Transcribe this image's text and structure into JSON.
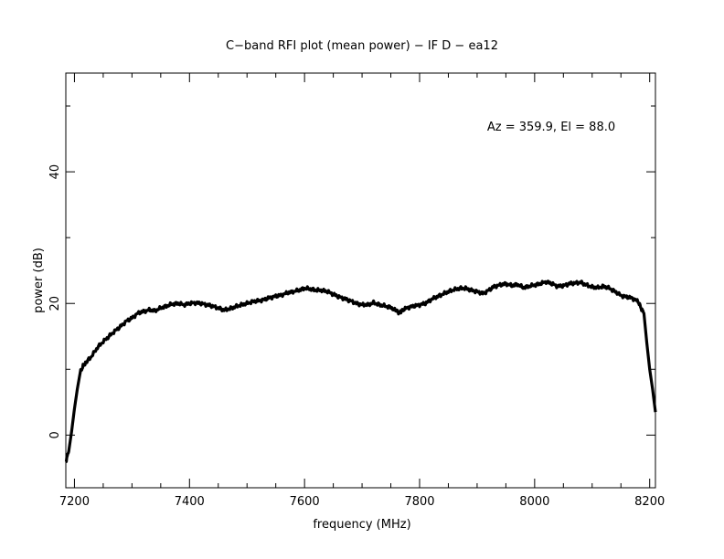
{
  "chart_data": {
    "type": "line",
    "title": "C−band RFI plot (mean power) − IF D − ea12",
    "xlabel": "frequency (MHz)",
    "ylabel": "power (dB)",
    "xlim": [
      7185,
      8210
    ],
    "ylim": [
      -8,
      55
    ],
    "x_ticks": [
      7200,
      7400,
      7600,
      7800,
      8000,
      8200
    ],
    "x_tick_labels": [
      "7200",
      "7400",
      "7600",
      "7800",
      "8000",
      "8200"
    ],
    "x_minor_step": 50,
    "y_ticks": [
      0,
      20,
      40
    ],
    "y_tick_labels": [
      "0",
      "20",
      "40"
    ],
    "y_minor_step": 10,
    "grid": false,
    "annotation": "Az = 359.9, El = 88.0",
    "series": [
      {
        "color": "#000000",
        "x": [
          7185,
          7190,
          7195,
          7200,
          7205,
          7210,
          7215,
          7220,
          7230,
          7240,
          7250,
          7260,
          7270,
          7280,
          7290,
          7300,
          7310,
          7320,
          7330,
          7340,
          7350,
          7360,
          7370,
          7380,
          7390,
          7400,
          7410,
          7420,
          7430,
          7440,
          7450,
          7460,
          7470,
          7480,
          7490,
          7500,
          7510,
          7520,
          7530,
          7540,
          7550,
          7560,
          7570,
          7580,
          7590,
          7600,
          7610,
          7620,
          7630,
          7640,
          7650,
          7660,
          7670,
          7680,
          7690,
          7700,
          7710,
          7720,
          7730,
          7740,
          7750,
          7760,
          7765,
          7770,
          7780,
          7790,
          7800,
          7810,
          7820,
          7830,
          7840,
          7850,
          7860,
          7870,
          7880,
          7890,
          7900,
          7910,
          7920,
          7930,
          7940,
          7950,
          7960,
          7970,
          7980,
          7990,
          8000,
          8010,
          8020,
          8030,
          8040,
          8050,
          8060,
          8070,
          8080,
          8090,
          8100,
          8110,
          8120,
          8130,
          8140,
          8150,
          8160,
          8170,
          8180,
          8185,
          8190,
          8195,
          8200,
          8205,
          8210
        ],
        "y": [
          -4,
          -2.5,
          0.5,
          4,
          7,
          9.5,
          10.5,
          11,
          12,
          13.3,
          14.2,
          15,
          15.8,
          16.5,
          17.3,
          17.8,
          18.5,
          18.8,
          19,
          18.9,
          19.3,
          19.6,
          19.9,
          20,
          19.8,
          20,
          20.1,
          20.0,
          19.8,
          19.6,
          19.3,
          19.0,
          19.2,
          19.5,
          19.8,
          20.0,
          20.3,
          20.4,
          20.6,
          20.9,
          21.1,
          21.3,
          21.6,
          21.8,
          22.0,
          22.3,
          22.2,
          22.0,
          22.0,
          21.8,
          21.4,
          21.0,
          20.7,
          20.4,
          20.0,
          19.8,
          19.8,
          20.1,
          19.8,
          19.6,
          19.4,
          18.8,
          18.6,
          19.0,
          19.4,
          19.6,
          19.8,
          20.0,
          20.6,
          21.0,
          21.4,
          21.8,
          22.1,
          22.3,
          22.3,
          22.0,
          21.8,
          21.5,
          22.0,
          22.6,
          22.8,
          23.0,
          22.7,
          22.9,
          22.4,
          22.6,
          22.8,
          23.0,
          23.3,
          23.0,
          22.6,
          22.7,
          23.0,
          23.1,
          23.2,
          22.8,
          22.5,
          22.4,
          22.6,
          22.3,
          21.8,
          21.2,
          21.0,
          20.8,
          20.3,
          19.3,
          18.5,
          14.0,
          10.0,
          7.0,
          3.5
        ]
      }
    ]
  }
}
